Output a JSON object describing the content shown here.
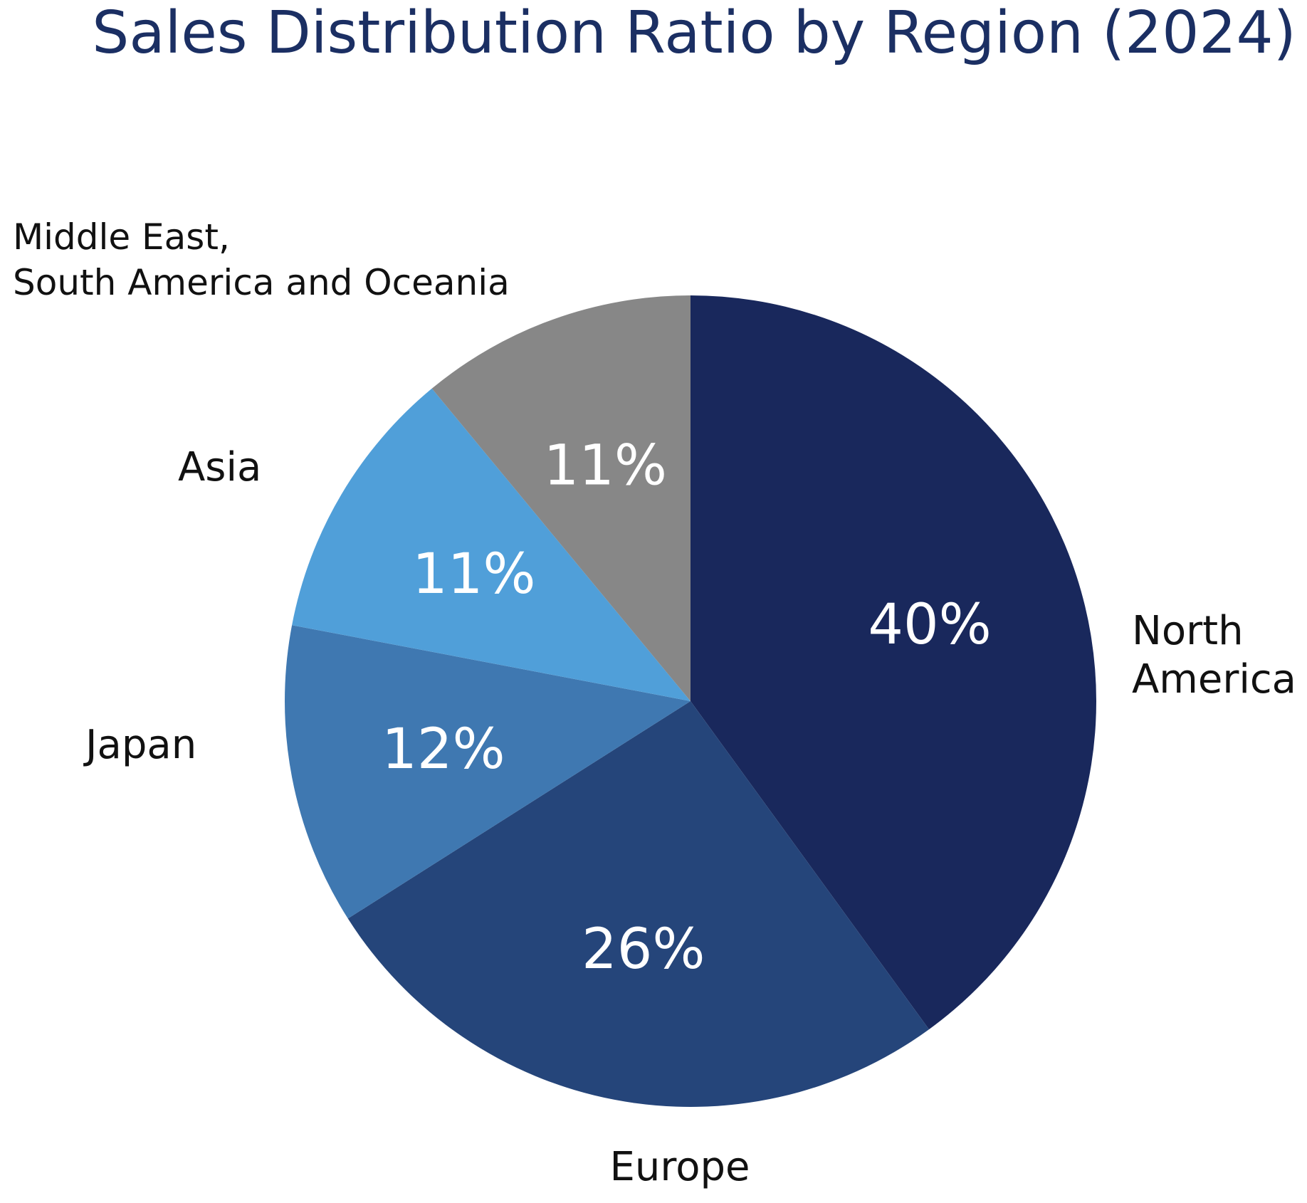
{
  "chart_data": {
    "type": "pie",
    "title": "Sales Distribution Ratio by Region (2024)",
    "start_angle_deg": 0,
    "direction": "clockwise",
    "slices": [
      {
        "label_lines": [
          "North",
          "America"
        ],
        "value": 40,
        "display": "40%",
        "color": "#19285c"
      },
      {
        "label_lines": [
          "Europe"
        ],
        "value": 26,
        "display": "26%",
        "color": "#25457a"
      },
      {
        "label_lines": [
          "Japan"
        ],
        "value": 12,
        "display": "12%",
        "color": "#3f78b1"
      },
      {
        "label_lines": [
          "Asia"
        ],
        "value": 11,
        "display": "11%",
        "color": "#509fd9"
      },
      {
        "label_lines": [
          "Middle East,",
          "South America and Oceania"
        ],
        "value": 11,
        "display": "11%",
        "color": "#878787"
      }
    ]
  }
}
